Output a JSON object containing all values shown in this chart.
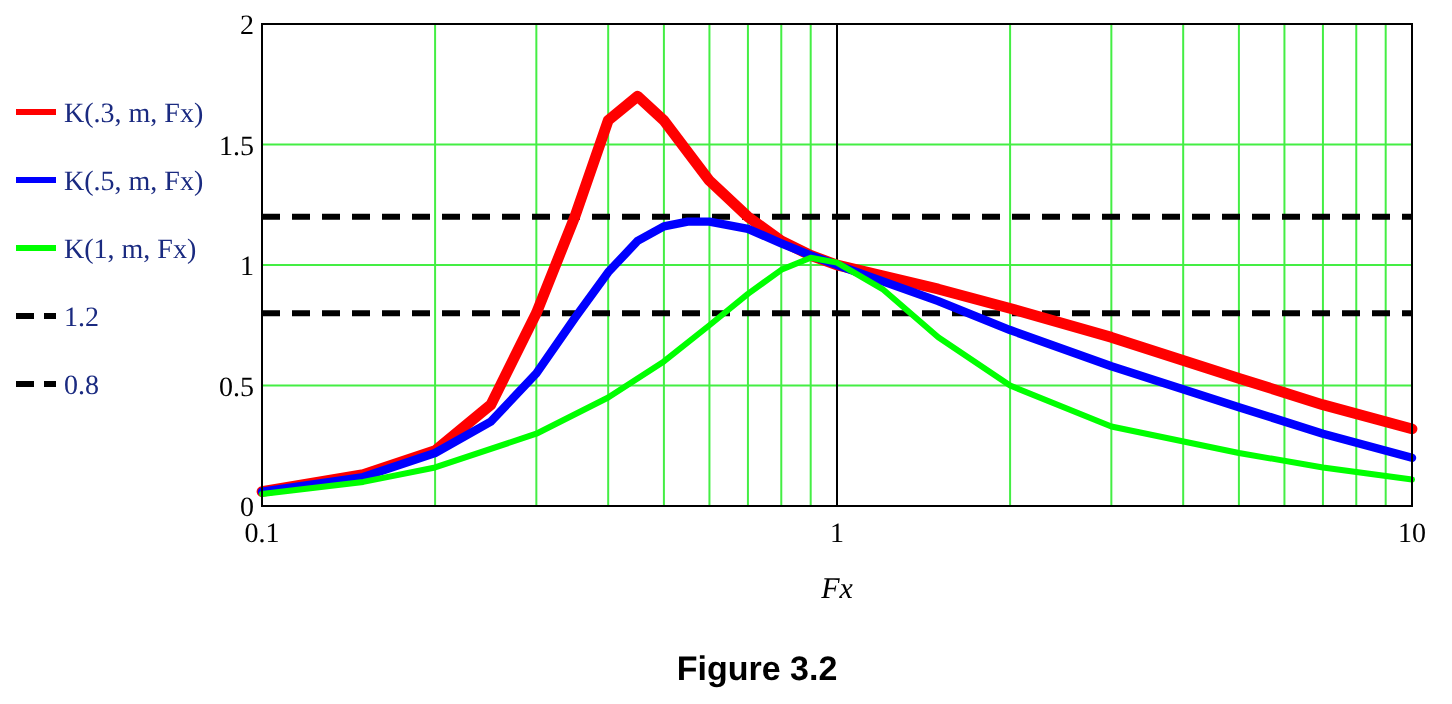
{
  "chart_data": {
    "type": "line",
    "title": "Figure 3.2",
    "xlabel": "Fx",
    "log": "x",
    "grid": true,
    "legend": "left",
    "line_style": "solid",
    "marker": "none",
    "xlim": [
      0.1,
      10
    ],
    "ylim": [
      0,
      2
    ],
    "xticks": [
      0.1,
      {
        "value": 0.2,
        "label": null
      },
      {
        "value": 0.3,
        "label": null
      },
      {
        "value": 0.4,
        "label": null
      },
      {
        "value": 0.5,
        "label": null
      },
      {
        "value": 0.6,
        "label": null
      },
      {
        "value": 0.7,
        "label": null
      },
      {
        "value": 0.8,
        "label": null
      },
      {
        "value": 0.9,
        "label": null
      },
      1,
      {
        "value": 2,
        "label": null
      },
      {
        "value": 3,
        "label": null
      },
      {
        "value": 4,
        "label": null
      },
      {
        "value": 5,
        "label": null
      },
      {
        "value": 6,
        "label": null
      },
      {
        "value": 7,
        "label": null
      },
      {
        "value": 8,
        "label": null
      },
      {
        "value": 9,
        "label": null
      },
      10
    ],
    "yticks": [
      0,
      0.5,
      1,
      1.5,
      2
    ],
    "series": [
      {
        "name": "K(.3, m, Fx)",
        "color": "#ff0000",
        "x": [
          0.1,
          0.15,
          0.2,
          0.25,
          0.3,
          0.35,
          0.4,
          0.45,
          0.5,
          0.6,
          0.7,
          0.8,
          0.9,
          1,
          1.5,
          2,
          3,
          5,
          7,
          10
        ],
        "values": [
          0.06,
          0.13,
          0.23,
          0.42,
          0.8,
          1.2,
          1.6,
          1.7,
          1.6,
          1.35,
          1.2,
          1.1,
          1.04,
          1.0,
          0.9,
          0.82,
          0.7,
          0.53,
          0.42,
          0.32
        ]
      },
      {
        "name": "K(.5, m, Fx)",
        "color": "#0000ff",
        "x": [
          0.1,
          0.15,
          0.2,
          0.25,
          0.3,
          0.35,
          0.4,
          0.45,
          0.5,
          0.55,
          0.6,
          0.7,
          0.8,
          0.9,
          1,
          1.5,
          2,
          3,
          5,
          7,
          10
        ],
        "values": [
          0.06,
          0.12,
          0.22,
          0.35,
          0.55,
          0.78,
          0.97,
          1.1,
          1.16,
          1.18,
          1.18,
          1.15,
          1.09,
          1.04,
          1.0,
          0.85,
          0.73,
          0.58,
          0.41,
          0.3,
          0.2
        ]
      },
      {
        "name": "K(1, m, Fx)",
        "color": "#00ff00",
        "x": [
          0.1,
          0.15,
          0.2,
          0.3,
          0.4,
          0.5,
          0.6,
          0.7,
          0.8,
          0.9,
          1,
          1.2,
          1.5,
          2,
          3,
          5,
          7,
          10
        ],
        "values": [
          0.05,
          0.1,
          0.16,
          0.3,
          0.45,
          0.6,
          0.75,
          0.88,
          0.98,
          1.03,
          1.01,
          0.9,
          0.7,
          0.5,
          0.33,
          0.22,
          0.16,
          0.11
        ]
      }
    ],
    "ref_lines": [
      {
        "axis": "y",
        "value": 1.2,
        "label": "1.2",
        "color": "#000000",
        "line_style": "dashed"
      },
      {
        "axis": "y",
        "value": 0.8,
        "label": "0.8",
        "color": "#000000",
        "line_style": "dashed"
      },
      {
        "axis": "x",
        "value": 1,
        "color": "#000000",
        "line_style": "solid"
      }
    ]
  }
}
